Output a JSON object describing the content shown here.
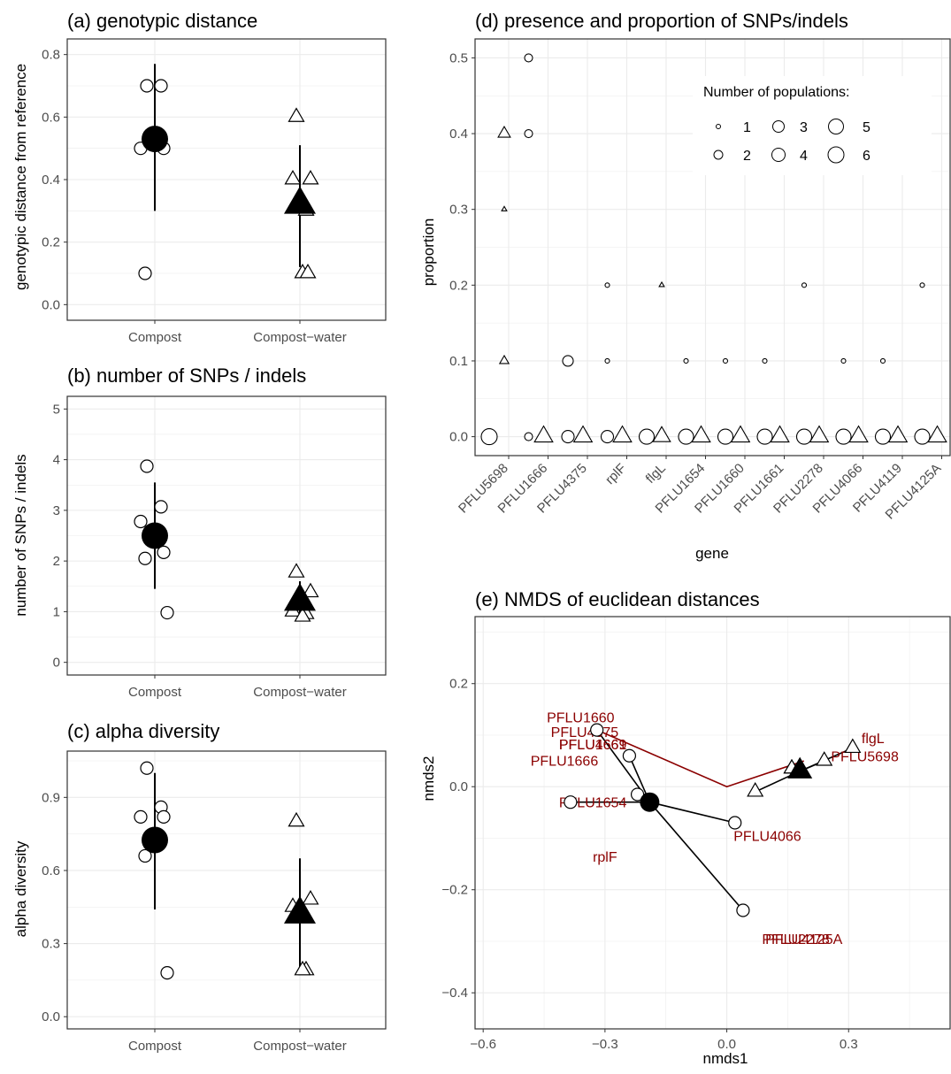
{
  "colors": {
    "grid": "#ebebeb",
    "panel_border": "#333333",
    "tick_text": "#4d4d4d",
    "gene_label": "#8b0000",
    "line_dark_red": "#8b0000"
  },
  "panels": {
    "a": {
      "title": "(a) genotypic distance",
      "ylabel": "genotypic distance from reference"
    },
    "b": {
      "title": "(b) number of SNPs / indels",
      "ylabel": "number of SNPs / indels"
    },
    "c": {
      "title": "(c) alpha diversity",
      "ylabel": "alpha diversity"
    },
    "d": {
      "title": "(d) presence and proportion of SNPs/indels",
      "ylabel": "proportion",
      "xlabel": "gene"
    },
    "e": {
      "title": "(e) NMDS of euclidean distances",
      "xlabel": "nmds1",
      "ylabel": "nmds2"
    }
  },
  "legend": {
    "title": "Number of populations:",
    "items": [
      "1",
      "2",
      "3",
      "4",
      "5",
      "6"
    ]
  },
  "chart_data": [
    {
      "panel": "a",
      "type": "scatter",
      "title": "(a) genotypic distance",
      "ylabel": "genotypic distance from reference",
      "categories": [
        "Compost",
        "Compost−water"
      ],
      "ylim": [
        -0.05,
        0.85
      ],
      "yticks": [
        "0.0",
        "0.2",
        "0.4",
        "0.6",
        "0.8"
      ],
      "grid": true,
      "points": [
        {
          "group": "Compost",
          "values": [
            0.7,
            0.7,
            0.5,
            0.5,
            0.1
          ],
          "mean": 0.53,
          "lower": 0.3,
          "upper": 0.77,
          "shape": "circle"
        },
        {
          "group": "Compost−water",
          "values": [
            0.6,
            0.4,
            0.4,
            0.3,
            0.1,
            0.1
          ],
          "mean": 0.32,
          "lower": 0.12,
          "upper": 0.51,
          "shape": "triangle"
        }
      ]
    },
    {
      "panel": "b",
      "type": "scatter",
      "title": "(b) number of SNPs / indels",
      "ylabel": "number of SNPs / indels",
      "categories": [
        "Compost",
        "Compost−water"
      ],
      "ylim": [
        -0.25,
        5.25
      ],
      "yticks": [
        "0",
        "1",
        "2",
        "3",
        "4",
        "5"
      ],
      "grid": true,
      "points": [
        {
          "group": "Compost",
          "values": [
            3.87,
            3.07,
            2.78,
            2.17,
            2.05,
            0.98
          ],
          "mean": 2.5,
          "lower": 1.45,
          "upper": 3.55,
          "shape": "circle"
        },
        {
          "group": "Compost−water",
          "values": [
            1.77,
            1.38,
            1.0,
            0.95,
            0.9
          ],
          "mean": 1.2,
          "lower": 0.95,
          "upper": 1.6,
          "shape": "triangle"
        }
      ]
    },
    {
      "panel": "c",
      "type": "scatter",
      "title": "(c) alpha diversity",
      "ylabel": "alpha diversity",
      "categories": [
        "Compost",
        "Compost−water"
      ],
      "ylim": [
        -0.05,
        1.09
      ],
      "yticks": [
        "0.0",
        "0.3",
        "0.6",
        "0.9"
      ],
      "grid": true,
      "points": [
        {
          "group": "Compost",
          "values": [
            1.02,
            0.86,
            0.82,
            0.82,
            0.66,
            0.18
          ],
          "mean": 0.725,
          "lower": 0.44,
          "upper": 1.0,
          "shape": "circle"
        },
        {
          "group": "Compost−water",
          "values": [
            0.8,
            0.48,
            0.45,
            0.19,
            0.19
          ],
          "mean": 0.42,
          "lower": 0.18,
          "upper": 0.65,
          "shape": "triangle"
        }
      ]
    },
    {
      "panel": "d",
      "type": "scatter",
      "title": "(d) presence and proportion of SNPs/indels",
      "xlabel": "gene",
      "ylabel": "proportion",
      "categories": [
        "PFLU5698",
        "PFLU1666",
        "PFLU4375",
        "rplF",
        "flgL",
        "PFLU1654",
        "PFLU1660",
        "PFLU1661",
        "PFLU2278",
        "PFLU4066",
        "PFLU4119",
        "PFLU4125A"
      ],
      "ylim": [
        -0.025,
        0.525
      ],
      "yticks": [
        "0.0",
        "0.1",
        "0.2",
        "0.3",
        "0.4",
        "0.5"
      ],
      "grid": true,
      "size_legend": "Number of populations:",
      "points_compost": [
        {
          "gene": "PFLU5698",
          "y": 0.0,
          "n": 6
        },
        {
          "gene": "PFLU1666",
          "y": 0.5,
          "n": 2
        },
        {
          "gene": "PFLU1666",
          "y": 0.4,
          "n": 2
        },
        {
          "gene": "PFLU1666",
          "y": 0.0,
          "n": 2
        },
        {
          "gene": "PFLU4375",
          "y": 0.1,
          "n": 3
        },
        {
          "gene": "PFLU4375",
          "y": 0.0,
          "n": 4
        },
        {
          "gene": "rplF",
          "y": 0.2,
          "n": 1
        },
        {
          "gene": "rplF",
          "y": 0.1,
          "n": 1
        },
        {
          "gene": "rplF",
          "y": 0.0,
          "n": 4
        },
        {
          "gene": "flgL",
          "y": 0.0,
          "n": 5
        },
        {
          "gene": "PFLU1654",
          "y": 0.1,
          "n": 1
        },
        {
          "gene": "PFLU1654",
          "y": 0.0,
          "n": 5
        },
        {
          "gene": "PFLU1660",
          "y": 0.1,
          "n": 1
        },
        {
          "gene": "PFLU1660",
          "y": 0.0,
          "n": 5
        },
        {
          "gene": "PFLU1661",
          "y": 0.1,
          "n": 1
        },
        {
          "gene": "PFLU1661",
          "y": 0.0,
          "n": 5
        },
        {
          "gene": "PFLU2278",
          "y": 0.2,
          "n": 1
        },
        {
          "gene": "PFLU2278",
          "y": 0.0,
          "n": 5
        },
        {
          "gene": "PFLU4066",
          "y": 0.1,
          "n": 1
        },
        {
          "gene": "PFLU4066",
          "y": 0.0,
          "n": 5
        },
        {
          "gene": "PFLU4119",
          "y": 0.1,
          "n": 1
        },
        {
          "gene": "PFLU4119",
          "y": 0.0,
          "n": 5
        },
        {
          "gene": "PFLU4125A",
          "y": 0.2,
          "n": 1
        },
        {
          "gene": "PFLU4125A",
          "y": 0.0,
          "n": 5
        }
      ],
      "points_compost_water": [
        {
          "gene": "PFLU5698",
          "y": 0.4,
          "n": 3
        },
        {
          "gene": "PFLU5698",
          "y": 0.3,
          "n": 1
        },
        {
          "gene": "PFLU5698",
          "y": 0.1,
          "n": 2
        },
        {
          "gene": "PFLU1666",
          "y": 0.0,
          "n": 6
        },
        {
          "gene": "PFLU4375",
          "y": 0.0,
          "n": 6
        },
        {
          "gene": "rplF",
          "y": 0.0,
          "n": 6
        },
        {
          "gene": "flgL",
          "y": 0.2,
          "n": 1
        },
        {
          "gene": "flgL",
          "y": 0.0,
          "n": 5
        },
        {
          "gene": "PFLU1654",
          "y": 0.0,
          "n": 6
        },
        {
          "gene": "PFLU1660",
          "y": 0.0,
          "n": 6
        },
        {
          "gene": "PFLU1661",
          "y": 0.0,
          "n": 6
        },
        {
          "gene": "PFLU2278",
          "y": 0.0,
          "n": 6
        },
        {
          "gene": "PFLU4066",
          "y": 0.0,
          "n": 6
        },
        {
          "gene": "PFLU4119",
          "y": 0.0,
          "n": 6
        },
        {
          "gene": "PFLU4125A",
          "y": 0.0,
          "n": 6
        }
      ]
    },
    {
      "panel": "e",
      "type": "scatter",
      "title": "(e) NMDS of euclidean distances",
      "xlabel": "nmds1",
      "ylabel": "nmds2",
      "xlim": [
        -0.62,
        0.55
      ],
      "ylim": [
        -0.47,
        0.33
      ],
      "xticks": [
        -0.6,
        -0.3,
        0.0,
        0.3
      ],
      "xtick_labels": [
        "−0.6",
        "−0.3",
        "0.0",
        "0.3"
      ],
      "yticks": [
        -0.4,
        -0.2,
        0.0,
        0.2
      ],
      "ytick_labels": [
        "−0.4",
        "−0.2",
        "0.0",
        "0.2"
      ],
      "grid": true,
      "compost_centroid": [
        -0.19,
        -0.03
      ],
      "compost_points": [
        [
          -0.32,
          0.11
        ],
        [
          -0.24,
          0.06
        ],
        [
          -0.22,
          -0.015
        ],
        [
          -0.385,
          -0.03
        ],
        [
          0.02,
          -0.07
        ],
        [
          0.04,
          -0.24
        ]
      ],
      "water_centroid": [
        0.18,
        0.03
      ],
      "water_points": [
        [
          0.31,
          0.075
        ],
        [
          0.24,
          0.05
        ],
        [
          0.16,
          0.035
        ],
        [
          0.16,
          0.035
        ],
        [
          0.07,
          -0.01
        ]
      ],
      "env_vector": [
        [
          -0.32,
          0.11
        ],
        [
          0.0,
          0.0
        ],
        [
          0.19,
          0.05
        ]
      ],
      "gene_labels": [
        {
          "name": "PFLU1660",
          "x": -0.36,
          "y": 0.135
        },
        {
          "name": "PFLU4375",
          "x": -0.35,
          "y": 0.107
        },
        {
          "name": "PFLU4661",
          "x": -0.33,
          "y": 0.083
        },
        {
          "name": "PFLU1669",
          "x": -0.33,
          "y": 0.083
        },
        {
          "name": "PFLU1666",
          "x": -0.4,
          "y": 0.051
        },
        {
          "name": "PFLU1654",
          "x": -0.33,
          "y": -0.03
        },
        {
          "name": "rplF",
          "x": -0.3,
          "y": -0.135
        },
        {
          "name": "PFLU4066",
          "x": 0.1,
          "y": -0.095
        },
        {
          "name": "flgL",
          "x": 0.36,
          "y": 0.095
        },
        {
          "name": "PFLU5698",
          "x": 0.34,
          "y": 0.06
        },
        {
          "name": "PFLU2278",
          "x": 0.17,
          "y": -0.295
        },
        {
          "name": "PFLU4125A",
          "x": 0.19,
          "y": -0.295
        }
      ]
    }
  ]
}
